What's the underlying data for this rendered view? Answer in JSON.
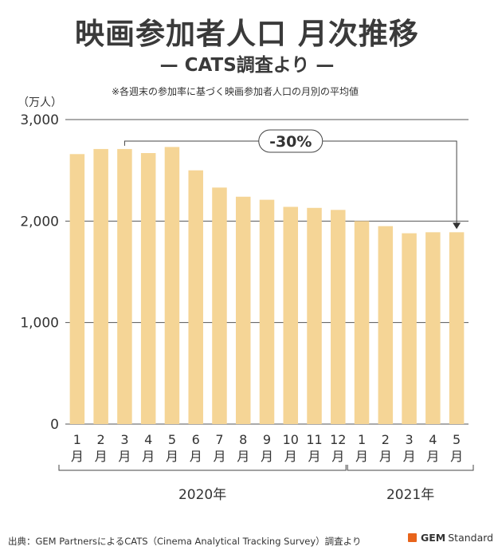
{
  "header": {
    "title": "映画参加者人口 月次推移",
    "subtitle": "— CATS調査より —",
    "note": "※各週末の参加率に基づく映画参加者人口の月別の平均値",
    "unit": "（万人）"
  },
  "chart_data": {
    "type": "bar",
    "categories": [
      "1\n月",
      "2\n月",
      "3\n月",
      "4\n月",
      "5\n月",
      "6\n月",
      "7\n月",
      "8\n月",
      "9\n月",
      "10\n月",
      "11\n月",
      "12\n月",
      "1\n月",
      "2\n月",
      "3\n月",
      "4\n月",
      "5\n月"
    ],
    "month_numbers": [
      "1",
      "2",
      "3",
      "4",
      "5",
      "6",
      "7",
      "8",
      "9",
      "10",
      "11",
      "12",
      "1",
      "2",
      "3",
      "4",
      "5"
    ],
    "month_suffix": "月",
    "values": [
      2660,
      2710,
      2710,
      2670,
      2730,
      2500,
      2330,
      2240,
      2210,
      2140,
      2130,
      2110,
      2000,
      1950,
      1880,
      1890,
      1890
    ],
    "ylim": [
      0,
      3000
    ],
    "yticks": [
      0,
      1000,
      2000,
      3000
    ],
    "ytick_labels": [
      "0",
      "1,000",
      "2,000",
      "3,000"
    ],
    "grid": true,
    "groups": [
      {
        "label": "2020年",
        "from": 0,
        "to": 11
      },
      {
        "label": "2021年",
        "from": 12,
        "to": 16
      }
    ],
    "annotation": {
      "label": "-30%",
      "from": 2,
      "to": 16
    },
    "bar_color": "#f5d596"
  },
  "footer": {
    "source": "出典：GEM PartnersによるCATS（Cinema  Analytical Tracking Survey）調査より",
    "logo_gem": "GEM",
    "logo_standard": "Standard",
    "logo_color": "#e8641b"
  }
}
